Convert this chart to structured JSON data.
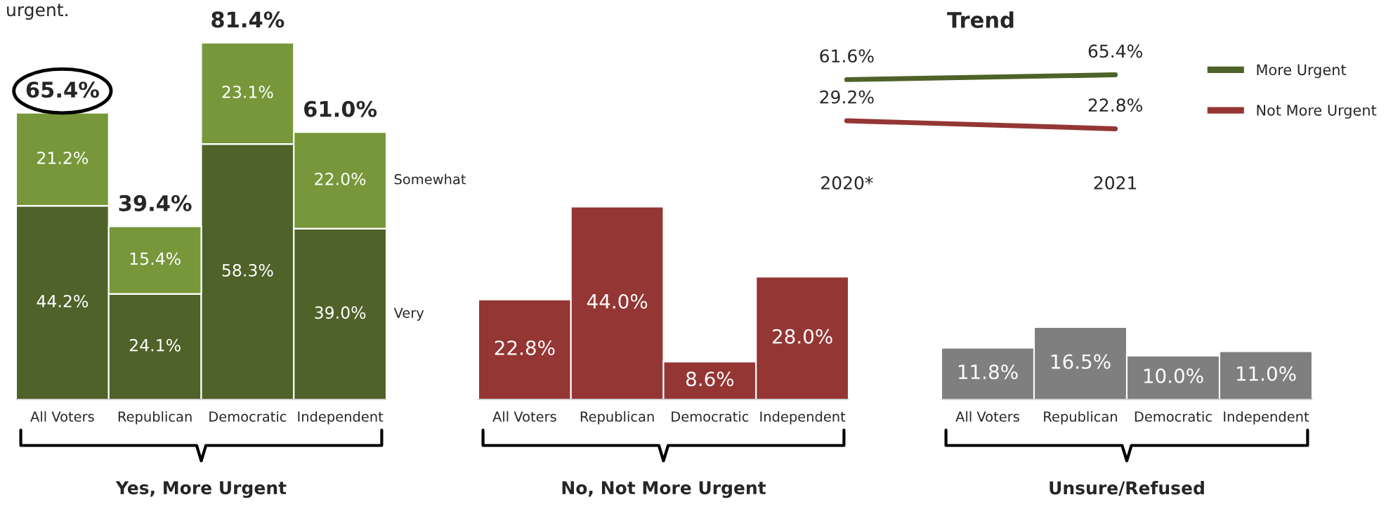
{
  "chart_data": [
    {
      "type": "bar",
      "stacked": true,
      "categories": [
        "All Voters",
        "Republican",
        "Democratic",
        "Independent"
      ],
      "xlabel": "Yes, More Urgent",
      "tick_labels": "x",
      "annotations": [
        "urgent."
      ],
      "totals": [
        "65.4%",
        "39.4%",
        "81.4%",
        "61.0%"
      ],
      "series": [
        {
          "name": "Very",
          "color": "#4e6229",
          "values": [
            44.2,
            24.1,
            58.3,
            39.0
          ],
          "value_labels": [
            "44.2%",
            "24.1%",
            "58.3%",
            "39.0%"
          ]
        },
        {
          "name": "Somewhat",
          "color": "#77973a",
          "values": [
            21.2,
            15.4,
            23.1,
            22.0
          ],
          "value_labels": [
            "21.2%",
            "15.4%",
            "23.1%",
            "22.0%"
          ]
        }
      ]
    },
    {
      "type": "bar",
      "categories": [
        "All Voters",
        "Republican",
        "Democratic",
        "Independent"
      ],
      "xlabel": "No, Not More Urgent",
      "tick_labels": "x",
      "series": [
        {
          "color": "#943634",
          "values": [
            22.8,
            44.0,
            8.6,
            28.0
          ],
          "value_labels": [
            "22.8%",
            "44.0%",
            "8.6%",
            "28.0%"
          ]
        }
      ]
    },
    {
      "type": "bar",
      "categories": [
        "All Voters",
        "Republican",
        "Democratic",
        "Independent"
      ],
      "xlabel": "Unsure/Refused",
      "tick_labels": "x",
      "series": [
        {
          "color": "#7f7f7f",
          "values": [
            11.8,
            16.5,
            10.0,
            11.0
          ],
          "value_labels": [
            "11.8%",
            "16.5%",
            "10.0%",
            "11.0%"
          ]
        }
      ]
    },
    {
      "type": "line",
      "title": "Trend",
      "categories": [
        "2020*",
        "2021"
      ],
      "tick_labels": "x",
      "legend": "right",
      "marker": "none",
      "line_style": "solid",
      "series": [
        {
          "name": "More Urgent",
          "color": "#4e6229",
          "values": [
            61.6,
            65.4
          ],
          "value_labels": [
            "61.6%",
            "65.4%"
          ]
        },
        {
          "name": "Not More Urgent",
          "color": "#943634",
          "values": [
            29.2,
            22.8
          ],
          "value_labels": [
            "29.2%",
            "22.8%"
          ]
        }
      ]
    }
  ]
}
